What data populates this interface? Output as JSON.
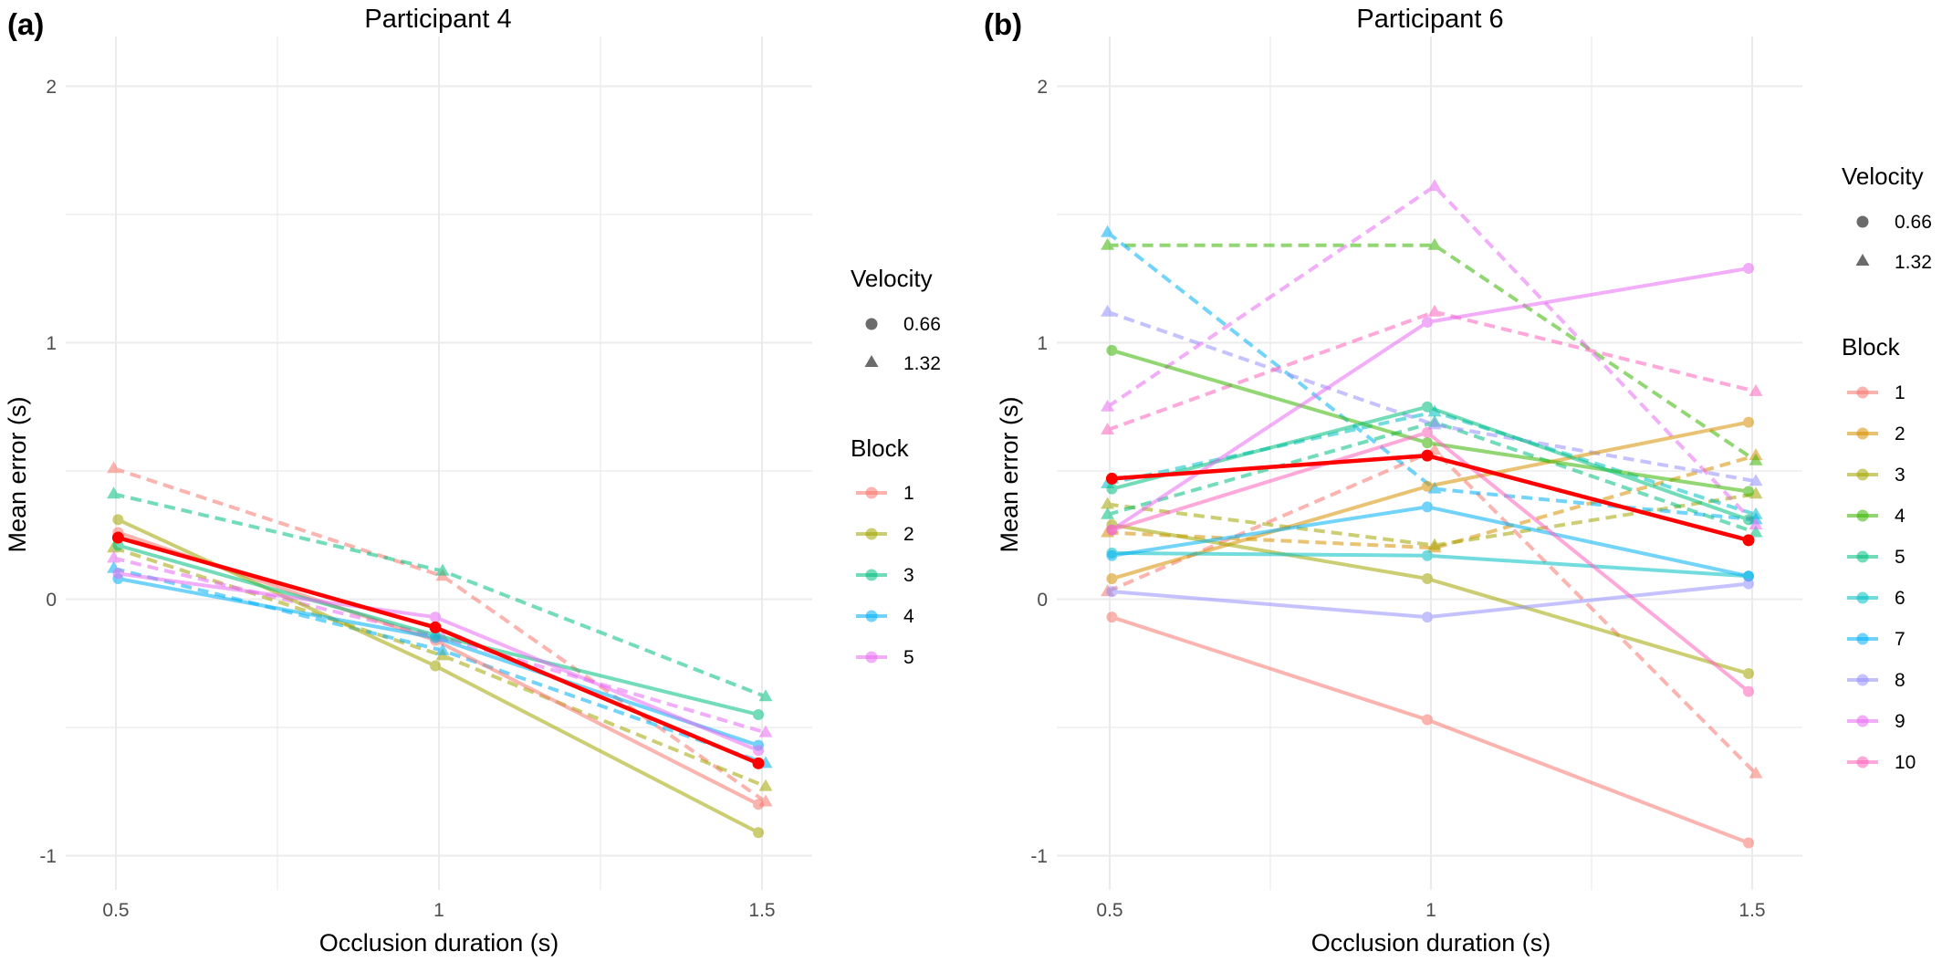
{
  "figure": {
    "panels": [
      {
        "tag": "(a)",
        "title": "Participant 4",
        "xlabel": "Occlusion duration (s)",
        "ylabel": "Mean error (s)",
        "xticks": [
          "0.5",
          "1",
          "1.5"
        ],
        "yticks": [
          "2",
          "1",
          "0",
          "-1"
        ],
        "legend": {
          "velocity_title": "Velocity",
          "velocity_items": [
            {
              "label": "0.66",
              "shape": "circle"
            },
            {
              "label": "1.32",
              "shape": "triangle"
            }
          ],
          "block_title": "Block",
          "block_items": [
            "1",
            "2",
            "3",
            "4",
            "5"
          ]
        }
      },
      {
        "tag": "(b)",
        "title": "Participant 6",
        "xlabel": "Occlusion duration (s)",
        "ylabel": "Mean error (s)",
        "xticks": [
          "0.5",
          "1",
          "1.5"
        ],
        "yticks": [
          "2",
          "1",
          "0",
          "-1"
        ],
        "legend": {
          "velocity_title": "Velocity",
          "velocity_items": [
            {
              "label": "0.66",
              "shape": "circle"
            },
            {
              "label": "1.32",
              "shape": "triangle"
            }
          ],
          "block_title": "Block",
          "block_items": [
            "1",
            "2",
            "3",
            "4",
            "5",
            "6",
            "7",
            "8",
            "9",
            "10"
          ]
        }
      }
    ]
  },
  "chart_data": [
    {
      "type": "line",
      "title": "Participant 4",
      "xlabel": "Occlusion duration (s)",
      "ylabel": "Mean error (s)",
      "x": [
        0.5,
        1,
        1.5
      ],
      "xlim": [
        0.4,
        1.58
      ],
      "ylim": [
        -1.13,
        2.1
      ],
      "grid": true,
      "legend_position": "right",
      "mean_series": {
        "color": "#ff0000",
        "values": [
          0.24,
          -0.11,
          -0.64
        ]
      },
      "series": [
        {
          "name": "1",
          "velocity": "0.66",
          "color": "#f8766d",
          "values": [
            0.26,
            -0.16,
            -0.8
          ]
        },
        {
          "name": "1",
          "velocity": "1.32",
          "color": "#f8766d",
          "values": [
            0.51,
            0.09,
            -0.79
          ]
        },
        {
          "name": "2",
          "velocity": "0.66",
          "color": "#a3a500",
          "values": [
            0.31,
            -0.26,
            -0.91
          ]
        },
        {
          "name": "2",
          "velocity": "1.32",
          "color": "#a3a500",
          "values": [
            0.2,
            -0.22,
            -0.73
          ]
        },
        {
          "name": "3",
          "velocity": "0.66",
          "color": "#00bf7d",
          "values": [
            0.21,
            -0.14,
            -0.45
          ]
        },
        {
          "name": "3",
          "velocity": "1.32",
          "color": "#00bf7d",
          "values": [
            0.41,
            0.11,
            -0.38
          ]
        },
        {
          "name": "4",
          "velocity": "0.66",
          "color": "#00b0f6",
          "values": [
            0.08,
            -0.15,
            -0.57
          ]
        },
        {
          "name": "4",
          "velocity": "1.32",
          "color": "#00b0f6",
          "values": [
            0.12,
            -0.2,
            -0.64
          ]
        },
        {
          "name": "5",
          "velocity": "0.66",
          "color": "#e76bf3",
          "values": [
            0.1,
            -0.07,
            -0.59
          ]
        },
        {
          "name": "5",
          "velocity": "1.32",
          "color": "#e76bf3",
          "values": [
            0.16,
            -0.15,
            -0.52
          ]
        }
      ]
    },
    {
      "type": "line",
      "title": "Participant 6",
      "xlabel": "Occlusion duration (s)",
      "ylabel": "Mean error (s)",
      "x": [
        0.5,
        1,
        1.5
      ],
      "xlim": [
        0.4,
        1.58
      ],
      "ylim": [
        -1.13,
        2.1
      ],
      "grid": true,
      "legend_position": "right",
      "mean_series": {
        "color": "#ff0000",
        "values": [
          0.47,
          0.56,
          0.23
        ]
      },
      "series": [
        {
          "name": "1",
          "velocity": "0.66",
          "color": "#f8766d",
          "values": [
            -0.07,
            -0.47,
            -0.95
          ]
        },
        {
          "name": "1",
          "velocity": "1.32",
          "color": "#f8766d",
          "values": [
            0.03,
            0.58,
            -0.68
          ]
        },
        {
          "name": "2",
          "velocity": "0.66",
          "color": "#d89000",
          "values": [
            0.08,
            0.44,
            0.69
          ]
        },
        {
          "name": "2",
          "velocity": "1.32",
          "color": "#d89000",
          "values": [
            0.26,
            0.2,
            0.56
          ]
        },
        {
          "name": "3",
          "velocity": "0.66",
          "color": "#a3a500",
          "values": [
            0.29,
            0.08,
            -0.29
          ]
        },
        {
          "name": "3",
          "velocity": "1.32",
          "color": "#a3a500",
          "values": [
            0.37,
            0.21,
            0.41
          ]
        },
        {
          "name": "4",
          "velocity": "0.66",
          "color": "#39b600",
          "values": [
            0.97,
            0.61,
            0.42
          ]
        },
        {
          "name": "4",
          "velocity": "1.32",
          "color": "#39b600",
          "values": [
            1.38,
            1.38,
            0.54
          ]
        },
        {
          "name": "5",
          "velocity": "0.66",
          "color": "#00bf7d",
          "values": [
            0.43,
            0.75,
            0.31
          ]
        },
        {
          "name": "5",
          "velocity": "1.32",
          "color": "#00bf7d",
          "values": [
            0.33,
            0.69,
            0.26
          ]
        },
        {
          "name": "6",
          "velocity": "0.66",
          "color": "#00bfc4",
          "values": [
            0.18,
            0.17,
            0.09
          ]
        },
        {
          "name": "6",
          "velocity": "1.32",
          "color": "#00bfc4",
          "values": [
            0.45,
            0.73,
            0.33
          ]
        },
        {
          "name": "7",
          "velocity": "0.66",
          "color": "#00b0f6",
          "values": [
            0.17,
            0.36,
            0.09
          ]
        },
        {
          "name": "7",
          "velocity": "1.32",
          "color": "#00b0f6",
          "values": [
            1.43,
            0.43,
            0.31
          ]
        },
        {
          "name": "8",
          "velocity": "0.66",
          "color": "#9590ff",
          "values": [
            0.03,
            -0.07,
            0.06
          ]
        },
        {
          "name": "8",
          "velocity": "1.32",
          "color": "#9590ff",
          "values": [
            1.12,
            0.68,
            0.46
          ]
        },
        {
          "name": "9",
          "velocity": "0.66",
          "color": "#e76bf3",
          "values": [
            0.27,
            1.08,
            1.29
          ]
        },
        {
          "name": "9",
          "velocity": "1.32",
          "color": "#e76bf3",
          "values": [
            0.75,
            1.61,
            0.29
          ]
        },
        {
          "name": "10",
          "velocity": "0.66",
          "color": "#ff62bc",
          "values": [
            0.27,
            0.65,
            -0.36
          ]
        },
        {
          "name": "10",
          "velocity": "1.32",
          "color": "#ff62bc",
          "values": [
            0.66,
            1.12,
            0.81
          ]
        }
      ]
    }
  ]
}
